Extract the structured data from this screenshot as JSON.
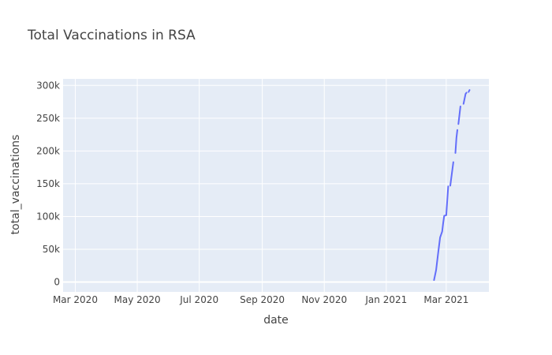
{
  "chart_data": {
    "type": "line",
    "title": "Total Vaccinations in RSA",
    "xlabel": "date",
    "ylabel": "total_vaccinations",
    "xlim": [
      "2020-02-18",
      "2021-04-12"
    ],
    "ylim": [
      -15000,
      310000
    ],
    "x_ticks": [
      {
        "date": "2020-03-01",
        "label": "Mar 2020"
      },
      {
        "date": "2020-05-01",
        "label": "May 2020"
      },
      {
        "date": "2020-07-01",
        "label": "Jul 2020"
      },
      {
        "date": "2020-09-01",
        "label": "Sep 2020"
      },
      {
        "date": "2020-11-01",
        "label": "Nov 2020"
      },
      {
        "date": "2021-01-01",
        "label": "Jan 2021"
      },
      {
        "date": "2021-03-01",
        "label": "Mar 2021"
      }
    ],
    "y_ticks": [
      {
        "value": 0,
        "label": "0"
      },
      {
        "value": 50000,
        "label": "50k"
      },
      {
        "value": 100000,
        "label": "100k"
      },
      {
        "value": 150000,
        "label": "150k"
      },
      {
        "value": 200000,
        "label": "200k"
      },
      {
        "value": 250000,
        "label": "250k"
      },
      {
        "value": 300000,
        "label": "300k"
      }
    ],
    "grid": true,
    "line_color": "#636efa",
    "plot_background": "#e5ecf6",
    "grid_color": "#ffffff",
    "segments": [
      [
        {
          "x": "2021-02-17",
          "y": 3000
        },
        {
          "x": "2021-02-19",
          "y": 18000
        },
        {
          "x": "2021-02-21",
          "y": 44000
        },
        {
          "x": "2021-02-23",
          "y": 68000
        },
        {
          "x": "2021-02-25",
          "y": 77000
        },
        {
          "x": "2021-02-26",
          "y": 90000
        },
        {
          "x": "2021-02-27",
          "y": 101000
        },
        {
          "x": "2021-03-01",
          "y": 102000
        },
        {
          "x": "2021-03-02",
          "y": 125000
        },
        {
          "x": "2021-03-03",
          "y": 146000
        }
      ],
      [
        {
          "x": "2021-03-05",
          "y": 147000
        },
        {
          "x": "2021-03-08",
          "y": 183000
        }
      ],
      [
        {
          "x": "2021-03-10",
          "y": 197000
        },
        {
          "x": "2021-03-11",
          "y": 220000
        },
        {
          "x": "2021-03-12",
          "y": 232000
        }
      ],
      [
        {
          "x": "2021-03-13",
          "y": 241000
        },
        {
          "x": "2021-03-15",
          "y": 268000
        }
      ],
      [
        {
          "x": "2021-03-18",
          "y": 272000
        },
        {
          "x": "2021-03-20",
          "y": 287000
        },
        {
          "x": "2021-03-21",
          "y": 289000
        }
      ],
      [
        {
          "x": "2021-03-23",
          "y": 290000
        },
        {
          "x": "2021-03-24",
          "y": 293000
        }
      ]
    ]
  }
}
